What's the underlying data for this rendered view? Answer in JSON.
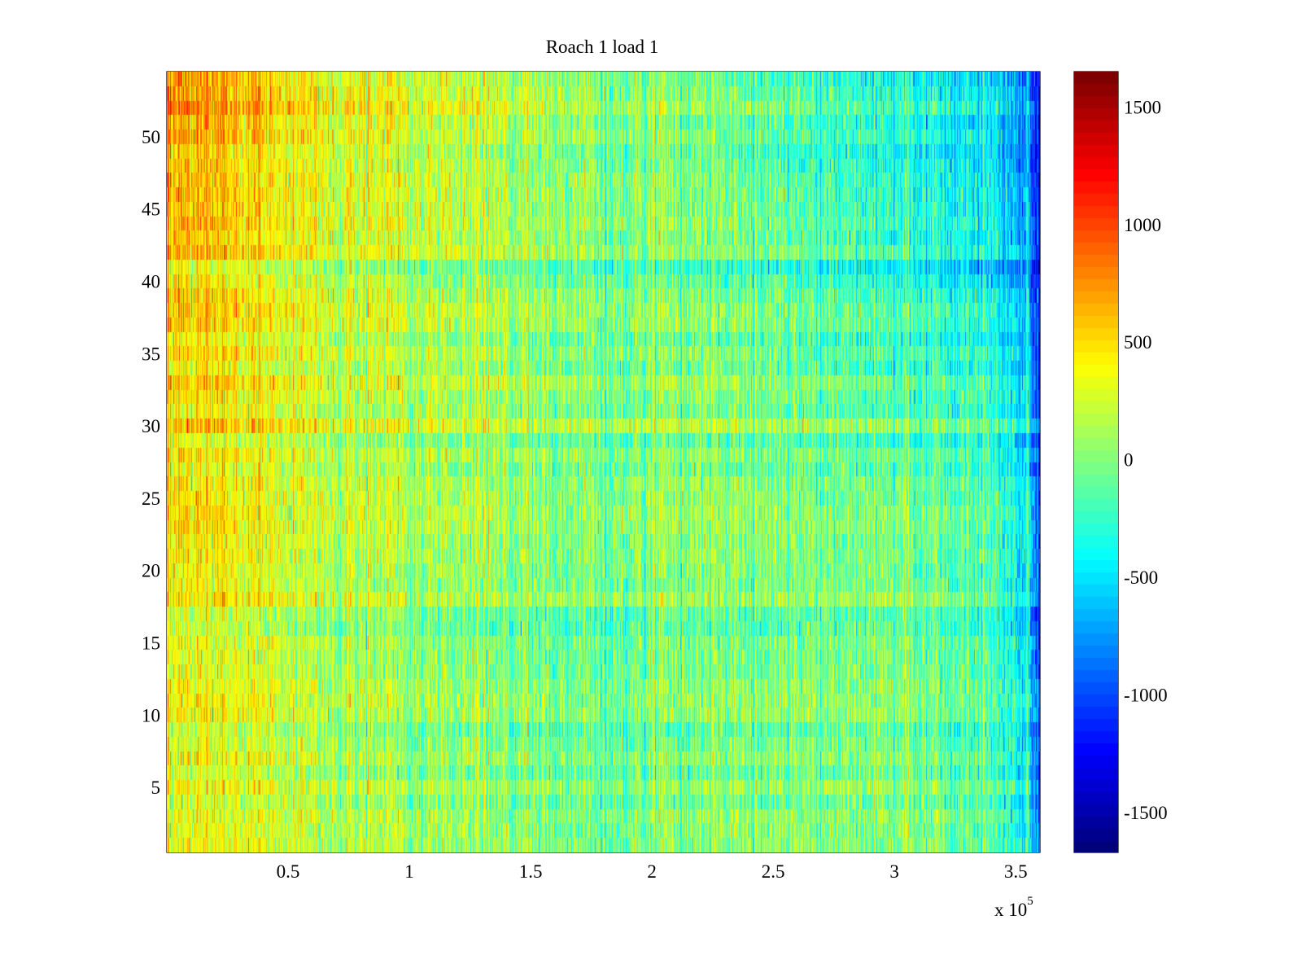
{
  "chart_data": {
    "type": "heatmap",
    "title": "Roach 1 load 1",
    "xlabel": "",
    "ylabel": "",
    "x_multiplier_label": "x 10",
    "x_multiplier_exponent": "5",
    "xlim": [
      0,
      360000
    ],
    "ylim": [
      0.5,
      54.5
    ],
    "rows": 54,
    "x_ticks": [
      50000,
      100000,
      150000,
      200000,
      250000,
      300000,
      350000
    ],
    "x_tick_labels": [
      "0.5",
      "1",
      "1.5",
      "2",
      "2.5",
      "3",
      "3.5"
    ],
    "y_ticks": [
      5,
      10,
      15,
      20,
      25,
      30,
      35,
      40,
      45,
      50
    ],
    "y_tick_labels": [
      "5",
      "10",
      "15",
      "20",
      "25",
      "30",
      "35",
      "40",
      "45",
      "50"
    ],
    "colormap": "jet",
    "clim": [
      -1670,
      1650
    ],
    "colorbar_ticks": [
      1500,
      1000,
      500,
      0,
      -500,
      -1000,
      -1500
    ],
    "colorbar_tick_labels": [
      "1500",
      "1000",
      "500",
      "0",
      "-500",
      "-1000",
      "-1500"
    ],
    "approx_mean_field": {
      "x_points": [
        0,
        50000,
        100000,
        150000,
        200000,
        250000,
        300000,
        340000,
        355000,
        360000
      ],
      "row_points": [
        1,
        15,
        30,
        45,
        54
      ],
      "values": [
        [
          300,
          200,
          50,
          -50,
          -80,
          -50,
          0,
          -200,
          -450,
          -900
        ],
        [
          450,
          250,
          100,
          0,
          -20,
          0,
          50,
          -150,
          -400,
          -1000
        ],
        [
          500,
          300,
          150,
          50,
          0,
          -50,
          -100,
          -250,
          -500,
          -1100
        ],
        [
          700,
          400,
          250,
          100,
          0,
          -100,
          -250,
          -450,
          -700,
          -1200
        ],
        [
          800,
          500,
          300,
          150,
          0,
          -150,
          -300,
          -500,
          -800,
          -1300
        ]
      ],
      "noise_std": 260
    }
  }
}
